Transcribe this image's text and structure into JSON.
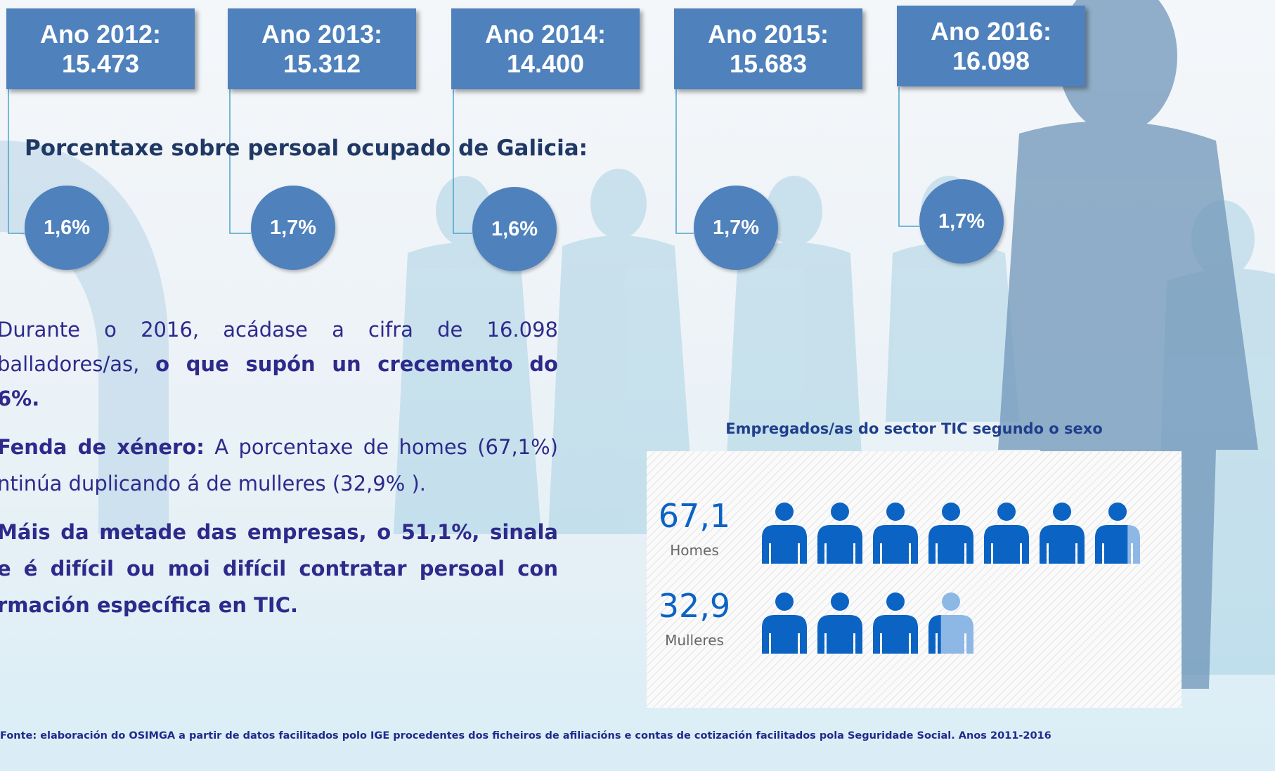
{
  "years": [
    {
      "label": "Ano 2012:",
      "value": "15.473",
      "percent": "1,6%"
    },
    {
      "label": "Ano 2013:",
      "value": "15.312",
      "percent": "1,7%"
    },
    {
      "label": "Ano 2014:",
      "value": "14.400",
      "percent": "1,6%"
    },
    {
      "label": "Ano 2015:",
      "value": "15.683",
      "percent": "1,7%"
    },
    {
      "label": "Ano 2016:",
      "value": "16.098",
      "percent": "1,7%"
    }
  ],
  "subtitle": "Porcentaxe sobre persoal ocupado de Galicia:",
  "paragraphs": [
    {
      "lines": [
        "Durante o 2016, acádase a cifra de  16.098",
        [
          "balladores/as, ",
          "o que supón un crecemento do"
        ],
        "6%."
      ]
    },
    {
      "lines": [
        [
          "Fenda de xénero:",
          " A porcentaxe de homes (67,1%)"
        ],
        "ntinúa duplicando á de mulleres (32,9% )."
      ]
    },
    {
      "lines": [
        "Máis da metade das empresas, o 51,1%, sinala",
        "e é difícil ou moi difícil contratar persoal con",
        "rmación específica en TIC."
      ]
    }
  ],
  "chart_data": {
    "type": "pictogram",
    "title": "Empregados/as do sector TIC segundo o sexo",
    "categories": [
      "Homes",
      "Mulleres"
    ],
    "values": [
      67.1,
      32.9
    ],
    "value_labels": [
      "67,1",
      "32,9"
    ],
    "color": "#0b63c4"
  },
  "source": "Fonte: elaboración do OSIMGA a partir de datos facilitados polo IGE procedentes dos ficheiros de afiliacións e contas de cotización facilitados pola Seguridade Social. Anos 2011-2016"
}
